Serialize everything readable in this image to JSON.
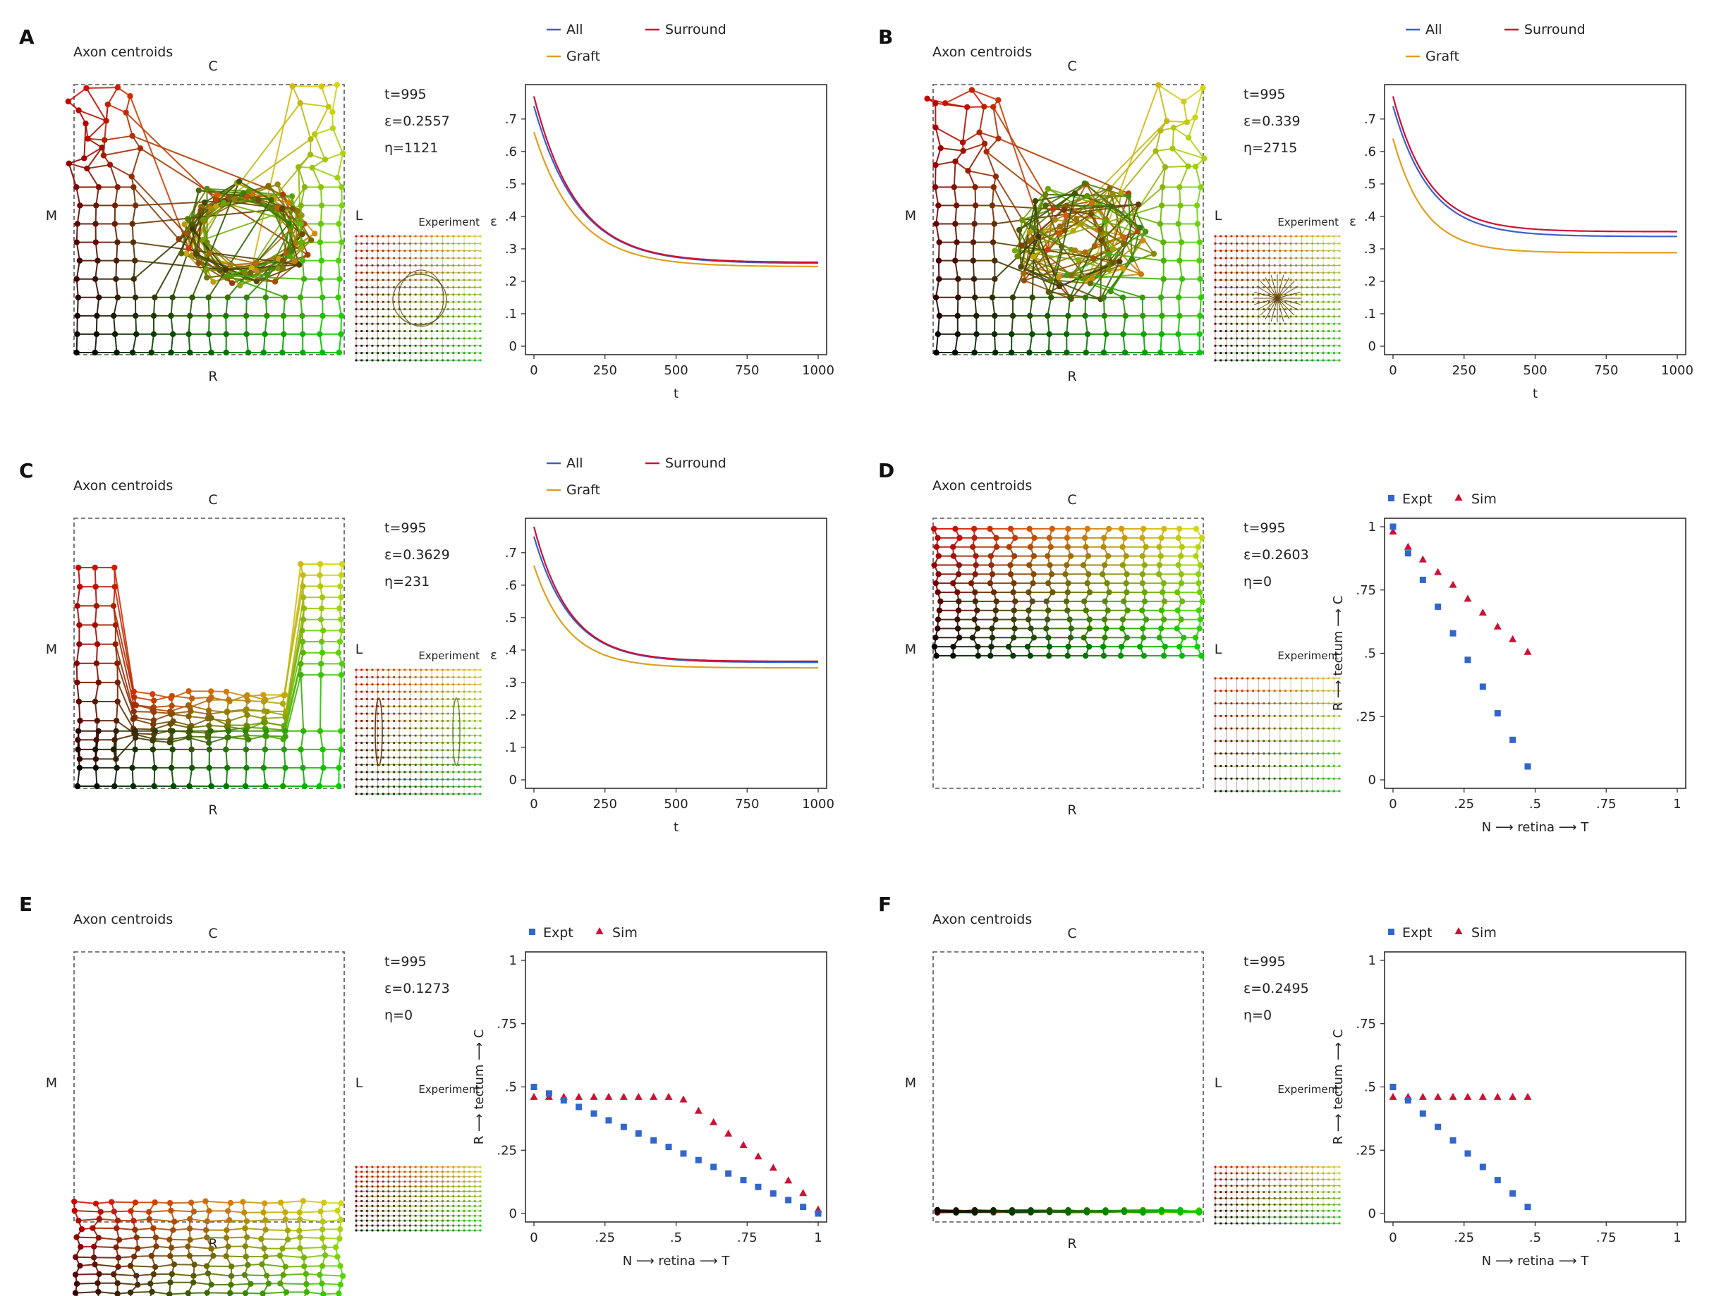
{
  "labels": {
    "axon_title": "Axon centroids",
    "dir_c": "C",
    "dir_r": "R",
    "dir_m": "M",
    "dir_l": "L",
    "experiment": "Experiment"
  },
  "panels": [
    {
      "letter": "A",
      "stats": [
        "t=995",
        "ε=0.2557",
        "η=1121"
      ],
      "map": "A",
      "exp": "A",
      "chart": 0
    },
    {
      "letter": "B",
      "stats": [
        "t=995",
        "ε=0.339",
        "η=2715"
      ],
      "map": "B",
      "exp": "B",
      "chart": 1
    },
    {
      "letter": "C",
      "stats": [
        "t=995",
        "ε=0.3629",
        "η=231"
      ],
      "map": "C",
      "exp": "C",
      "chart": 2
    },
    {
      "letter": "D",
      "stats": [
        "t=995",
        "ε=0.2603",
        "η=0"
      ],
      "map": "D",
      "exp": "D",
      "chart": 3
    },
    {
      "letter": "E",
      "stats": [
        "t=995",
        "ε=0.1273",
        "η=0"
      ],
      "map": "E",
      "exp": "E",
      "chart": 4
    },
    {
      "letter": "F",
      "stats": [
        "t=995",
        "ε=0.2495",
        "η=0"
      ],
      "map": "F",
      "exp": "F",
      "chart": 5
    }
  ],
  "colors": {
    "all": "#3b5fcc",
    "surround": "#cc1133",
    "graft": "#e0a020",
    "expt": "#3366cc",
    "sim": "#cc1133"
  },
  "chart_data": [
    {
      "type": "line",
      "panel": "A",
      "xlabel": "t",
      "ylabel": "ε",
      "xlim": [
        0,
        1000
      ],
      "ylim": [
        0,
        0.78
      ],
      "xticks": [
        0,
        250,
        500,
        750,
        1000
      ],
      "yticks": [
        0,
        0.1,
        0.2,
        0.3,
        0.4,
        0.5,
        0.6,
        0.7
      ],
      "yticklabels": [
        "0",
        ".1",
        ".2",
        ".3",
        ".4",
        ".5",
        ".6",
        ".7"
      ],
      "series": [
        {
          "name": "All",
          "start": 0.74,
          "end": 0.255,
          "tau": 155
        },
        {
          "name": "Surround",
          "start": 0.77,
          "end": 0.258,
          "tau": 150
        },
        {
          "name": "Graft",
          "start": 0.66,
          "end": 0.245,
          "tau": 150
        }
      ]
    },
    {
      "type": "line",
      "panel": "B",
      "xlabel": "t",
      "ylabel": "ε",
      "xlim": [
        0,
        1000
      ],
      "ylim": [
        0,
        0.78
      ],
      "xticks": [
        0,
        250,
        500,
        750,
        1000
      ],
      "yticks": [
        0,
        0.1,
        0.2,
        0.3,
        0.4,
        0.5,
        0.6,
        0.7
      ],
      "yticklabels": [
        "0",
        ".1",
        ".2",
        ".3",
        ".4",
        ".5",
        ".6",
        ".7"
      ],
      "series": [
        {
          "name": "All",
          "start": 0.74,
          "end": 0.338,
          "tau": 130
        },
        {
          "name": "Surround",
          "start": 0.77,
          "end": 0.353,
          "tau": 125
        },
        {
          "name": "Graft",
          "start": 0.64,
          "end": 0.288,
          "tau": 110
        }
      ]
    },
    {
      "type": "line",
      "panel": "C",
      "xlabel": "t",
      "ylabel": "ε",
      "xlim": [
        0,
        1000
      ],
      "ylim": [
        0,
        0.78
      ],
      "xticks": [
        0,
        250,
        500,
        750,
        1000
      ],
      "yticks": [
        0,
        0.1,
        0.2,
        0.3,
        0.4,
        0.5,
        0.6,
        0.7
      ],
      "yticklabels": [
        "0",
        ".1",
        ".2",
        ".3",
        ".4",
        ".5",
        ".6",
        ".7"
      ],
      "series": [
        {
          "name": "All",
          "start": 0.75,
          "end": 0.362,
          "tau": 130
        },
        {
          "name": "Surround",
          "start": 0.78,
          "end": 0.365,
          "tau": 125
        },
        {
          "name": "Graft",
          "start": 0.66,
          "end": 0.345,
          "tau": 120
        }
      ]
    },
    {
      "type": "scatter",
      "panel": "D",
      "xlabel": "N ⟶ retina ⟶ T",
      "ylabel": "R ⟶ tectum ⟶ C",
      "xlim": [
        0,
        1
      ],
      "ylim": [
        0,
        1
      ],
      "xticks": [
        0,
        0.25,
        0.5,
        0.75,
        1
      ],
      "xticklabels": [
        "0",
        ".25",
        ".5",
        ".75",
        "1"
      ],
      "yticks": [
        0,
        0.25,
        0.5,
        0.75,
        1
      ],
      "yticklabels": [
        "0",
        ".25",
        ".5",
        ".75",
        "1"
      ],
      "series": [
        {
          "name": "Expt",
          "x": [
            0,
            0.053,
            0.105,
            0.158,
            0.211,
            0.263,
            0.316,
            0.368,
            0.421,
            0.474
          ],
          "y": [
            1.0,
            0.895,
            0.79,
            0.684,
            0.579,
            0.474,
            0.368,
            0.263,
            0.158,
            0.053
          ]
        },
        {
          "name": "Sim",
          "x": [
            0,
            0.053,
            0.105,
            0.158,
            0.211,
            0.263,
            0.316,
            0.368,
            0.421,
            0.474
          ],
          "y": [
            0.98,
            0.92,
            0.87,
            0.82,
            0.77,
            0.715,
            0.66,
            0.605,
            0.555,
            0.505
          ]
        }
      ]
    },
    {
      "type": "scatter",
      "panel": "E",
      "xlabel": "N ⟶ retina ⟶ T",
      "ylabel": "R ⟶ tectum ⟶ C",
      "xlim": [
        0,
        1
      ],
      "ylim": [
        0,
        1
      ],
      "xticks": [
        0,
        0.25,
        0.5,
        0.75,
        1
      ],
      "xticklabels": [
        "0",
        ".25",
        ".5",
        ".75",
        "1"
      ],
      "yticks": [
        0,
        0.25,
        0.5,
        0.75,
        1
      ],
      "yticklabels": [
        "0",
        ".25",
        ".5",
        ".75",
        "1"
      ],
      "series": [
        {
          "name": "Expt",
          "x": [
            0,
            0.053,
            0.105,
            0.158,
            0.211,
            0.263,
            0.316,
            0.368,
            0.421,
            0.474,
            0.526,
            0.579,
            0.632,
            0.684,
            0.737,
            0.789,
            0.842,
            0.895,
            0.947,
            1.0
          ],
          "y": [
            0.5,
            0.474,
            0.447,
            0.421,
            0.395,
            0.368,
            0.342,
            0.316,
            0.289,
            0.263,
            0.237,
            0.211,
            0.184,
            0.158,
            0.132,
            0.105,
            0.079,
            0.053,
            0.026,
            0.0
          ]
        },
        {
          "name": "Sim",
          "x": [
            0,
            0.053,
            0.105,
            0.158,
            0.211,
            0.263,
            0.316,
            0.368,
            0.421,
            0.474,
            0.526,
            0.579,
            0.632,
            0.684,
            0.737,
            0.789,
            0.842,
            0.895,
            0.947,
            1.0
          ],
          "y": [
            0.46,
            0.46,
            0.46,
            0.46,
            0.46,
            0.46,
            0.46,
            0.46,
            0.46,
            0.46,
            0.45,
            0.405,
            0.36,
            0.315,
            0.27,
            0.225,
            0.18,
            0.13,
            0.08,
            0.015
          ]
        }
      ]
    },
    {
      "type": "scatter",
      "panel": "F",
      "xlabel": "N ⟶ retina ⟶ T",
      "ylabel": "R ⟶ tectum ⟶ C",
      "xlim": [
        0,
        1
      ],
      "ylim": [
        0,
        1
      ],
      "xticks": [
        0,
        0.25,
        0.5,
        0.75,
        1
      ],
      "xticklabels": [
        "0",
        ".25",
        ".5",
        ".75",
        "1"
      ],
      "yticks": [
        0,
        0.25,
        0.5,
        0.75,
        1
      ],
      "yticklabels": [
        "0",
        ".25",
        ".5",
        ".75",
        "1"
      ],
      "series": [
        {
          "name": "Expt",
          "x": [
            0,
            0.053,
            0.105,
            0.158,
            0.211,
            0.263,
            0.316,
            0.368,
            0.421,
            0.474
          ],
          "y": [
            0.5,
            0.447,
            0.395,
            0.342,
            0.289,
            0.237,
            0.184,
            0.132,
            0.079,
            0.026
          ]
        },
        {
          "name": "Sim",
          "x": [
            0,
            0.053,
            0.105,
            0.158,
            0.211,
            0.263,
            0.316,
            0.368,
            0.421,
            0.474
          ],
          "y": [
            0.46,
            0.46,
            0.46,
            0.46,
            0.46,
            0.46,
            0.46,
            0.46,
            0.46,
            0.46
          ]
        }
      ]
    }
  ]
}
